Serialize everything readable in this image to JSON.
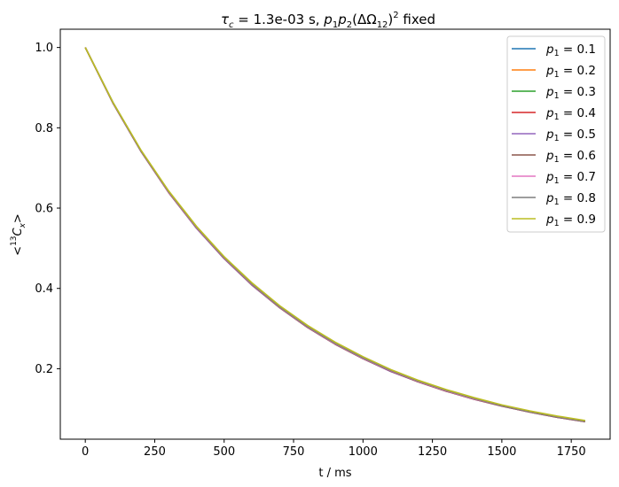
{
  "chart_data": {
    "type": "line",
    "title": {
      "tau": "τ",
      "c_sub": "c",
      "mid": " = 1.3e-03 s, ",
      "p1": "p",
      "p1_sub": "1",
      "p2": "p",
      "p2_sub": "2",
      "paren_open": "(ΔΩ",
      "omega_sub": "12",
      "paren_close": ")",
      "sup": "2",
      "tail": " fixed"
    },
    "xlabel": "t / ms",
    "ylabel": {
      "lt": "<",
      "sup": "13",
      "c": "C",
      "sub": "x",
      "gt": ">"
    },
    "xlim": [
      -90,
      1890
    ],
    "ylim": [
      0.0245,
      1.0455
    ],
    "xticks": [
      0,
      250,
      500,
      750,
      1000,
      1250,
      1500,
      1750
    ],
    "xtick_labels": [
      "0",
      "250",
      "500",
      "750",
      "1000",
      "1250",
      "1500",
      "1750"
    ],
    "yticks": [
      0.2,
      0.4,
      0.6,
      0.8,
      1.0
    ],
    "ytick_labels": [
      "0.2",
      "0.4",
      "0.6",
      "0.8",
      "1.0"
    ],
    "x": [
      0,
      100,
      200,
      300,
      400,
      500,
      600,
      700,
      800,
      900,
      1000,
      1100,
      1200,
      1300,
      1400,
      1500,
      1600,
      1700,
      1800
    ],
    "legend_position": "upper-right",
    "series": [
      {
        "name": "p1 = 0.1",
        "label_p": "p",
        "label_sub": "1",
        "label_rest": " = 0.1",
        "color": "#1f77b4",
        "values": [
          1.0,
          0.863,
          0.744,
          0.642,
          0.554,
          0.478,
          0.413,
          0.356,
          0.307,
          0.265,
          0.229,
          0.197,
          0.17,
          0.147,
          0.127,
          0.109,
          0.094,
          0.081,
          0.07
        ]
      },
      {
        "name": "p1 = 0.2",
        "label_p": "p",
        "label_sub": "1",
        "label_rest": " = 0.2",
        "color": "#ff7f0e",
        "values": [
          1.0,
          0.862,
          0.743,
          0.641,
          0.553,
          0.477,
          0.411,
          0.354,
          0.305,
          0.263,
          0.227,
          0.196,
          0.169,
          0.146,
          0.126,
          0.108,
          0.093,
          0.08,
          0.069
        ]
      },
      {
        "name": "p1 = 0.3",
        "label_p": "p",
        "label_sub": "1",
        "label_rest": " = 0.3",
        "color": "#2ca02c",
        "values": [
          1.0,
          0.862,
          0.743,
          0.64,
          0.552,
          0.476,
          0.41,
          0.353,
          0.304,
          0.262,
          0.226,
          0.195,
          0.168,
          0.145,
          0.125,
          0.108,
          0.093,
          0.08,
          0.069
        ]
      },
      {
        "name": "p1 = 0.4",
        "label_p": "p",
        "label_sub": "1",
        "label_rest": " = 0.4",
        "color": "#d62728",
        "values": [
          1.0,
          0.861,
          0.742,
          0.639,
          0.551,
          0.475,
          0.409,
          0.352,
          0.303,
          0.261,
          0.225,
          0.194,
          0.167,
          0.144,
          0.124,
          0.107,
          0.092,
          0.079,
          0.068
        ]
      },
      {
        "name": "p1 = 0.5",
        "label_p": "p",
        "label_sub": "1",
        "label_rest": " = 0.5",
        "color": "#9467bd",
        "values": [
          1.0,
          0.861,
          0.742,
          0.639,
          0.55,
          0.474,
          0.408,
          0.352,
          0.303,
          0.261,
          0.225,
          0.193,
          0.167,
          0.144,
          0.124,
          0.107,
          0.092,
          0.079,
          0.068
        ]
      },
      {
        "name": "p1 = 0.6",
        "label_p": "p",
        "label_sub": "1",
        "label_rest": " = 0.6",
        "color": "#8c564b",
        "values": [
          1.0,
          0.861,
          0.742,
          0.639,
          0.551,
          0.475,
          0.409,
          0.352,
          0.303,
          0.261,
          0.225,
          0.194,
          0.167,
          0.144,
          0.124,
          0.107,
          0.092,
          0.079,
          0.068
        ]
      },
      {
        "name": "p1 = 0.7",
        "label_p": "p",
        "label_sub": "1",
        "label_rest": " = 0.7",
        "color": "#e377c2",
        "values": [
          1.0,
          0.862,
          0.743,
          0.64,
          0.552,
          0.476,
          0.41,
          0.353,
          0.304,
          0.262,
          0.226,
          0.195,
          0.168,
          0.145,
          0.125,
          0.108,
          0.093,
          0.08,
          0.069
        ]
      },
      {
        "name": "p1 = 0.8",
        "label_p": "p",
        "label_sub": "1",
        "label_rest": " = 0.8",
        "color": "#7f7f7f",
        "values": [
          1.0,
          0.862,
          0.743,
          0.641,
          0.553,
          0.477,
          0.411,
          0.354,
          0.305,
          0.263,
          0.227,
          0.196,
          0.169,
          0.146,
          0.126,
          0.108,
          0.093,
          0.08,
          0.069
        ]
      },
      {
        "name": "p1 = 0.9",
        "label_p": "p",
        "label_sub": "1",
        "label_rest": " = 0.9",
        "color": "#bcbd22",
        "values": [
          1.0,
          0.863,
          0.745,
          0.643,
          0.555,
          0.479,
          0.414,
          0.357,
          0.308,
          0.266,
          0.23,
          0.198,
          0.171,
          0.148,
          0.128,
          0.11,
          0.095,
          0.082,
          0.071
        ]
      }
    ]
  }
}
